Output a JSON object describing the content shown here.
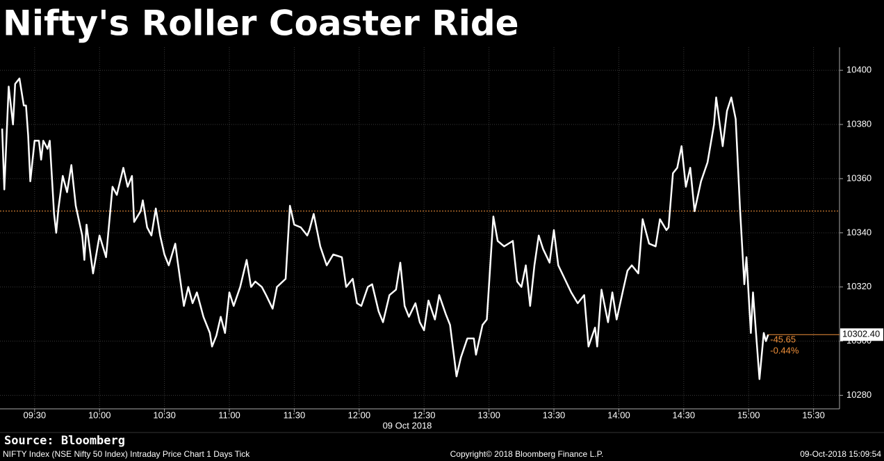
{
  "chart_data": {
    "type": "line",
    "title": "Nifty's Roller Coaster Ride",
    "x": [
      "09:15",
      "09:16",
      "09:18",
      "09:19",
      "09:20",
      "09:21",
      "09:23",
      "09:25",
      "09:26",
      "09:27",
      "09:28",
      "09:30",
      "09:32",
      "09:33",
      "09:34",
      "09:36",
      "09:37",
      "09:39",
      "09:40",
      "09:41",
      "09:43",
      "09:45",
      "09:47",
      "09:49",
      "09:52",
      "09:53",
      "09:54",
      "09:57",
      "10:00",
      "10:03",
      "10:06",
      "10:08",
      "10:11",
      "10:13",
      "10:15",
      "10:16",
      "10:19",
      "10:20",
      "10:22",
      "10:24",
      "10:26",
      "10:28",
      "10:30",
      "10:32",
      "10:35",
      "10:36",
      "10:39",
      "10:41",
      "10:43",
      "10:45",
      "10:48",
      "10:51",
      "10:52",
      "10:54",
      "10:56",
      "10:58",
      "11:00",
      "11:02",
      "11:05",
      "11:08",
      "11:10",
      "11:12",
      "11:15",
      "11:17",
      "11:20",
      "11:22",
      "11:26",
      "11:28",
      "11:30",
      "11:33",
      "11:36",
      "11:37",
      "11:39",
      "11:42",
      "11:45",
      "11:48",
      "11:52",
      "11:54",
      "11:57",
      "11:59",
      "12:01",
      "12:04",
      "12:06",
      "12:09",
      "12:11",
      "12:14",
      "12:17",
      "12:19",
      "12:21",
      "12:23",
      "12:26",
      "12:28",
      "12:30",
      "12:32",
      "12:35",
      "12:37",
      "12:40",
      "12:42",
      "12:45",
      "12:47",
      "12:50",
      "12:53",
      "12:54",
      "12:57",
      "12:59",
      "13:02",
      "13:04",
      "13:07",
      "13:11",
      "13:13",
      "13:15",
      "13:17",
      "13:19",
      "13:21",
      "13:23",
      "13:25",
      "13:28",
      "13:30",
      "13:32",
      "13:35",
      "13:38",
      "13:41",
      "13:44",
      "13:46",
      "13:49",
      "13:50",
      "13:52",
      "13:55",
      "13:57",
      "13:59",
      "14:02",
      "14:04",
      "14:06",
      "14:09",
      "14:11",
      "14:14",
      "14:17",
      "14:19",
      "14:22",
      "14:23",
      "14:25",
      "14:27",
      "14:29",
      "14:31",
      "14:33",
      "14:35",
      "14:38",
      "14:41",
      "14:44",
      "14:45",
      "14:48",
      "14:50",
      "14:52",
      "14:54",
      "14:56",
      "14:58",
      "14:59",
      "15:01",
      "15:02",
      "15:05",
      "15:07",
      "15:08",
      "15:09"
    ],
    "values": [
      10378.5,
      10356,
      10394,
      10387,
      10380,
      10395,
      10397,
      10387,
      10387,
      10376,
      10359,
      10374,
      10374,
      10367,
      10374,
      10371,
      10374,
      10347,
      10340,
      10349,
      10361,
      10355,
      10365,
      10350,
      10339,
      10330,
      10343,
      10325,
      10339,
      10331,
      10357,
      10354,
      10364,
      10357,
      10361,
      10344,
      10348,
      10352,
      10342,
      10339,
      10349,
      10339,
      10332,
      10328,
      10336,
      10330,
      10313,
      10320,
      10314,
      10318,
      10309,
      10303,
      10298,
      10302,
      10309,
      10303,
      10318,
      10313,
      10320,
      10330,
      10320,
      10322,
      10320,
      10317,
      10312,
      10320,
      10323,
      10350,
      10343,
      10342,
      10339,
      10341,
      10347,
      10335,
      10328,
      10332,
      10331,
      10320,
      10323,
      10314,
      10313,
      10320,
      10321,
      10311,
      10307,
      10317,
      10319,
      10329,
      10313,
      10309,
      10314,
      10307,
      10304,
      10315,
      10308,
      10317,
      10310,
      10306,
      10287,
      10294,
      10301,
      10301,
      10295,
      10306,
      10308,
      10346,
      10337,
      10335,
      10337,
      10322,
      10320,
      10328,
      10313,
      10328,
      10339,
      10334,
      10329,
      10341,
      10328,
      10323,
      10318,
      10314,
      10317,
      10298,
      10305,
      10298,
      10319,
      10307,
      10318,
      10308,
      10319,
      10326,
      10328,
      10325,
      10345,
      10336,
      10335,
      10345,
      10341,
      10342,
      10362,
      10364,
      10372,
      10357,
      10364,
      10348,
      10359,
      10366,
      10380,
      10390,
      10372,
      10385,
      10390,
      10382,
      10349,
      10321,
      10331,
      10303,
      10318,
      10286,
      10303,
      10300,
      10302.4
    ],
    "color": "#ffffff",
    "xlim": [
      "09:14",
      "15:42"
    ],
    "xticks": [
      "09:30",
      "10:00",
      "10:30",
      "11:00",
      "11:30",
      "12:00",
      "12:30",
      "13:00",
      "13:30",
      "14:00",
      "14:30",
      "15:00",
      "15:30"
    ],
    "ylim": [
      10275,
      10408.5
    ],
    "yticks": [
      10280,
      10300,
      10320,
      10340,
      10360,
      10380,
      10400
    ],
    "grid": true,
    "x_axis_date": "09 Oct 2018",
    "reference_line": 10348.05,
    "reference_color": "#f0903a",
    "last_value": {
      "value": 10302.4,
      "label": "10302.40"
    },
    "net_change": -45.65,
    "pct_change": {
      "value": -0.44,
      "label": "-0.44%"
    },
    "source": "Source: Bloomberg",
    "footer": {
      "description": "NIFTY Index (NSE Nifty 50 Index) Intraday Price Chart 1 Days  Tick",
      "copyright": "Copyright© 2018 Bloomberg Finance L.P.",
      "timestamp": "09-Oct-2018 15:09:54"
    }
  }
}
